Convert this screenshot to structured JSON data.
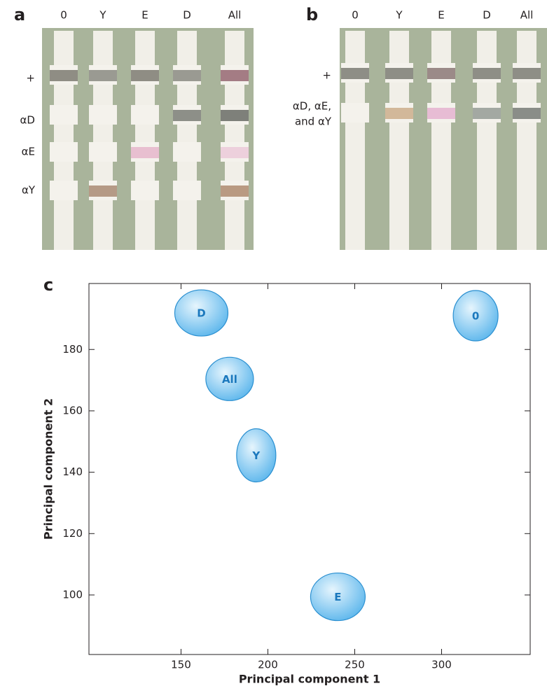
{
  "panels": [
    {
      "letter": "a",
      "columns": [
        "0",
        "Y",
        "E",
        "D",
        "All"
      ],
      "rows": [
        "+",
        "αD",
        "αE",
        "αY"
      ]
    },
    {
      "letter": "b",
      "columns": [
        "0",
        "Y",
        "E",
        "D",
        "All"
      ],
      "rows": [
        "+",
        "αD, αE,",
        "and αY"
      ]
    }
  ],
  "chart_data": {
    "type": "scatter",
    "letter": "c",
    "x_label": "Principal component 1",
    "y_label": "Principal component 2",
    "labels": [
      "D",
      "All",
      "Y",
      "E",
      "0"
    ],
    "x": [
      161.7,
      178,
      193.3,
      240.3,
      319.6
    ],
    "values": [
      191.9,
      170.4,
      145.5,
      99.4,
      191
    ],
    "color": "#6ec0ee",
    "xlim": [
      97,
      351
    ],
    "ylim": [
      80.6,
      201.5
    ],
    "xticks": [
      150,
      200,
      250,
      300
    ],
    "yticks": [
      100,
      120,
      140,
      160,
      180
    ]
  }
}
